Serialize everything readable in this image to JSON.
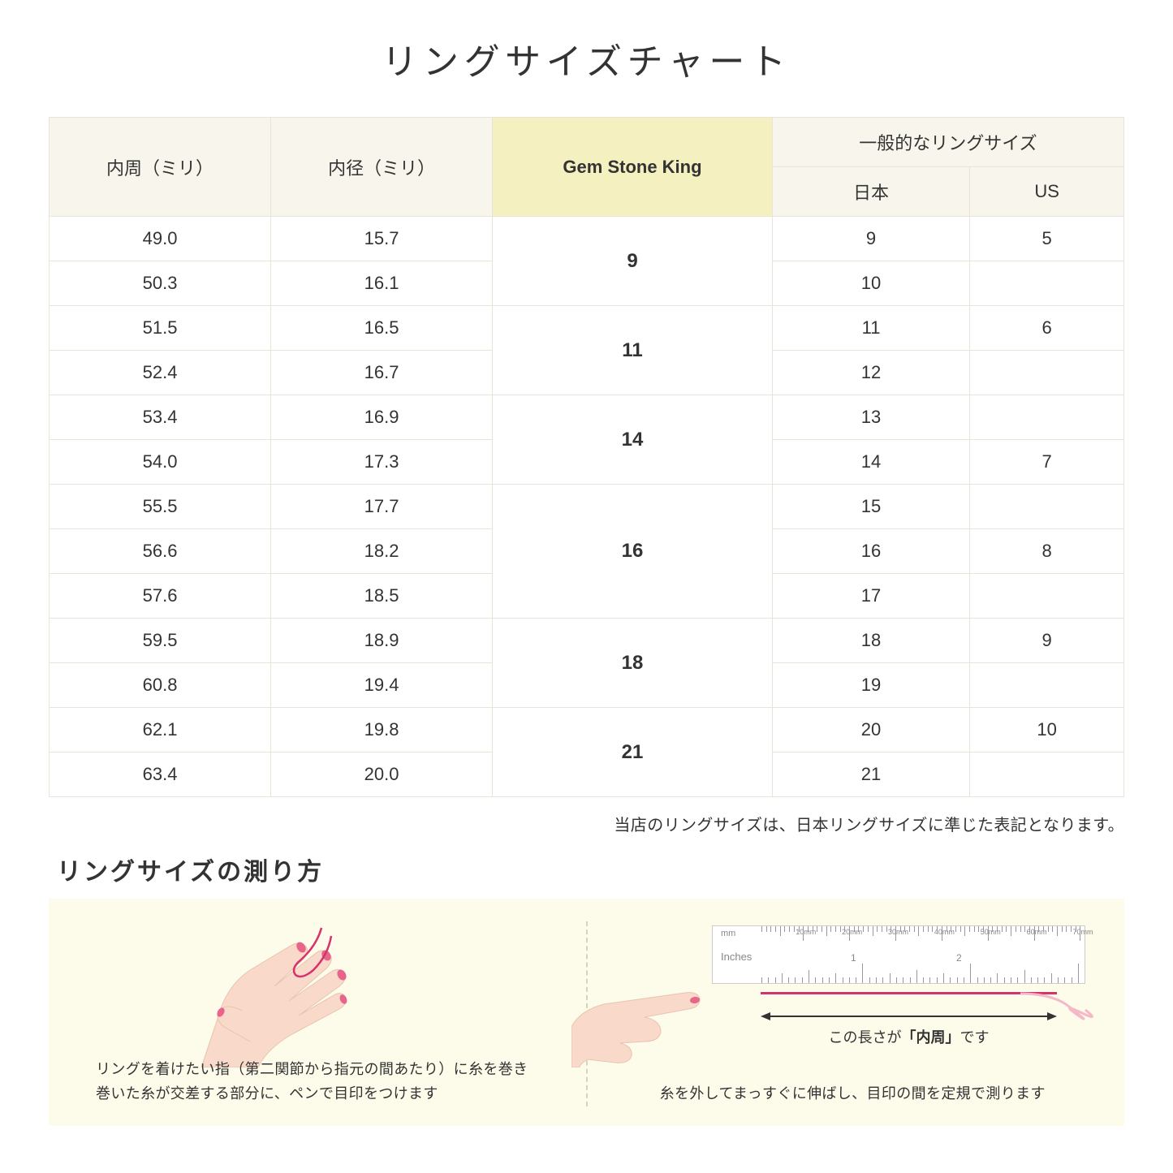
{
  "title": "リングサイズチャート",
  "headers": {
    "col1": "内周（ミリ）",
    "col2": "内径（ミリ）",
    "col3": "Gem Stone King",
    "col4_group": "一般的なリングサイズ",
    "col4a": "日本",
    "col4b": "US"
  },
  "rows": [
    {
      "c": "49.0",
      "d": "15.7",
      "g": "9",
      "gspan": 2,
      "j": "9",
      "u": "5"
    },
    {
      "c": "50.3",
      "d": "16.1",
      "j": "10",
      "u": ""
    },
    {
      "c": "51.5",
      "d": "16.5",
      "g": "11",
      "gspan": 2,
      "j": "11",
      "u": "6"
    },
    {
      "c": "52.4",
      "d": "16.7",
      "j": "12",
      "u": ""
    },
    {
      "c": "53.4",
      "d": "16.9",
      "g": "14",
      "gspan": 2,
      "j": "13",
      "u": ""
    },
    {
      "c": "54.0",
      "d": "17.3",
      "j": "14",
      "u": "7"
    },
    {
      "c": "55.5",
      "d": "17.7",
      "g": "16",
      "gspan": 3,
      "j": "15",
      "u": ""
    },
    {
      "c": "56.6",
      "d": "18.2",
      "j": "16",
      "u": "8"
    },
    {
      "c": "57.6",
      "d": "18.5",
      "j": "17",
      "u": ""
    },
    {
      "c": "59.5",
      "d": "18.9",
      "g": "18",
      "gspan": 2,
      "j": "18",
      "u": "9"
    },
    {
      "c": "60.8",
      "d": "19.4",
      "j": "19",
      "u": ""
    },
    {
      "c": "62.1",
      "d": "19.8",
      "g": "21",
      "gspan": 2,
      "j": "20",
      "u": "10"
    },
    {
      "c": "63.4",
      "d": "20.0",
      "j": "21",
      "u": ""
    }
  ],
  "note": "当店のリングサイズは、日本リングサイズに準じた表記となります。",
  "subtitle": "リングサイズの測り方",
  "inst1_line1": "リングを着けたい指（第二関節から指元の間あたり）に糸を巻き",
  "inst1_line2": "巻いた糸が交差する部分に、ペンで目印をつけます",
  "inst2": "糸を外してまっすぐに伸ばし、目印の間を定規で測ります",
  "measure_label_pre": "この長さが",
  "measure_label_bold": "「内周」",
  "measure_label_post": "です",
  "ruler": {
    "mm_label": "mm",
    "in_label": "Inches",
    "mm_marks": [
      "10mm",
      "20mm",
      "30mm",
      "40mm",
      "50mm",
      "60mm",
      "70mm"
    ],
    "in_marks": [
      "1",
      "2"
    ]
  },
  "colors": {
    "header_bg": "#f7f5ec",
    "highlight_bg": "#f4f0c0",
    "border": "#e8e4d8",
    "panel_bg": "#fdfbea",
    "thread": "#d6336c",
    "skin": "#f9d9c9",
    "nail": "#e8648a"
  }
}
